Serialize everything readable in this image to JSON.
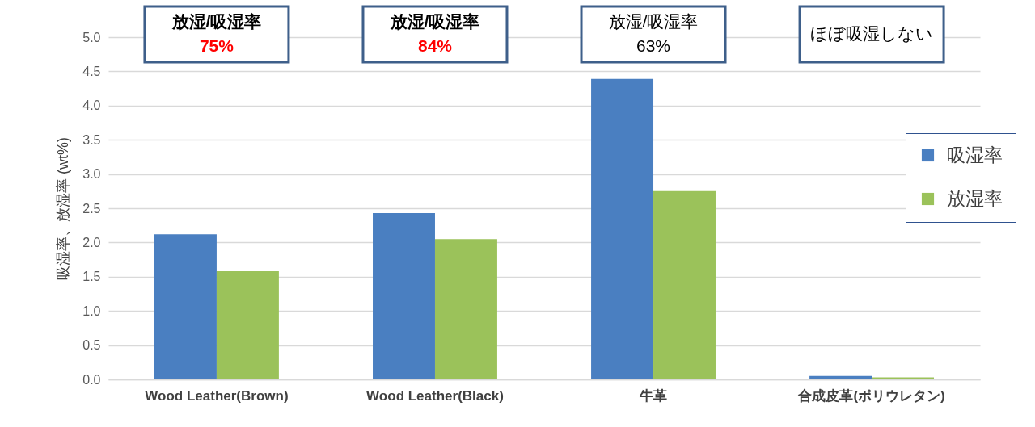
{
  "chart_data": {
    "type": "bar",
    "categories": [
      "Wood Leather(Brown)",
      "Wood Leather(Black)",
      "牛革",
      "合成皮革(ポリウレタン)"
    ],
    "series": [
      {
        "name": "吸湿率",
        "color": "#4a7fc1",
        "values": [
          2.12,
          2.43,
          4.39,
          0.05
        ]
      },
      {
        "name": "放湿率",
        "color": "#9bc25a",
        "values": [
          1.58,
          2.05,
          2.75,
          0.03
        ]
      }
    ],
    "ylabel": "吸湿率、放湿率 (wt%)",
    "ylim": [
      0,
      5
    ],
    "yticks": [
      {
        "value": 0,
        "label": "0.0"
      },
      {
        "value": 0.5,
        "label": "0.5"
      },
      {
        "value": 1,
        "label": "1.0"
      },
      {
        "value": 1.5,
        "label": "1.5"
      },
      {
        "value": 2,
        "label": "2.0"
      },
      {
        "value": 2.5,
        "label": "2.5"
      },
      {
        "value": 3,
        "label": "3.0"
      },
      {
        "value": 3.5,
        "label": "3.5"
      },
      {
        "value": 4,
        "label": "4.0"
      },
      {
        "value": 4.5,
        "label": "4.5"
      },
      {
        "value": 5,
        "label": "5.0"
      }
    ],
    "grid": "y",
    "legend": "right",
    "annotations": [
      "放湿/吸湿率\n75%",
      "放湿/吸湿率\n84%",
      "放湿/吸湿率\n63%",
      "ほぼ吸湿しない"
    ]
  }
}
